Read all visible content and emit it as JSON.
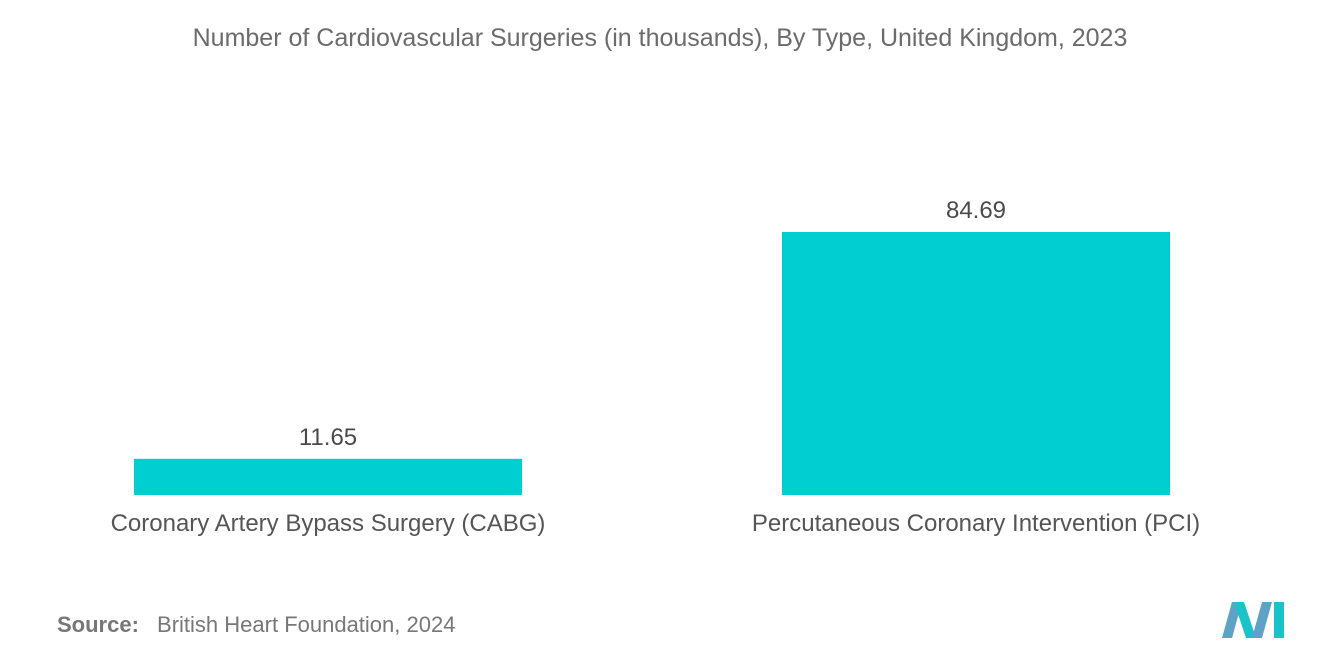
{
  "chart_data": {
    "type": "bar",
    "title": "Number of Cardiovascular Surgeries (in thousands), By Type, United Kingdom, 2023",
    "categories": [
      "Coronary Artery Bypass Surgery (CABG)",
      "Percutaneous Coronary Intervention (PCI)"
    ],
    "values": [
      11.65,
      84.69
    ],
    "value_labels": [
      "11.65",
      "84.69"
    ],
    "xlabel": "",
    "ylabel": "",
    "ylim": [
      0,
      84.69
    ],
    "grid": false,
    "legend": "none",
    "bar_color": "#00CED1"
  },
  "source": {
    "label": "Source:",
    "text": "British Heart Foundation, 2024"
  },
  "logo": {
    "icon": "mordor-intelligence-logo-icon",
    "colors": [
      "#5EA3C6",
      "#1AC2C9"
    ]
  }
}
